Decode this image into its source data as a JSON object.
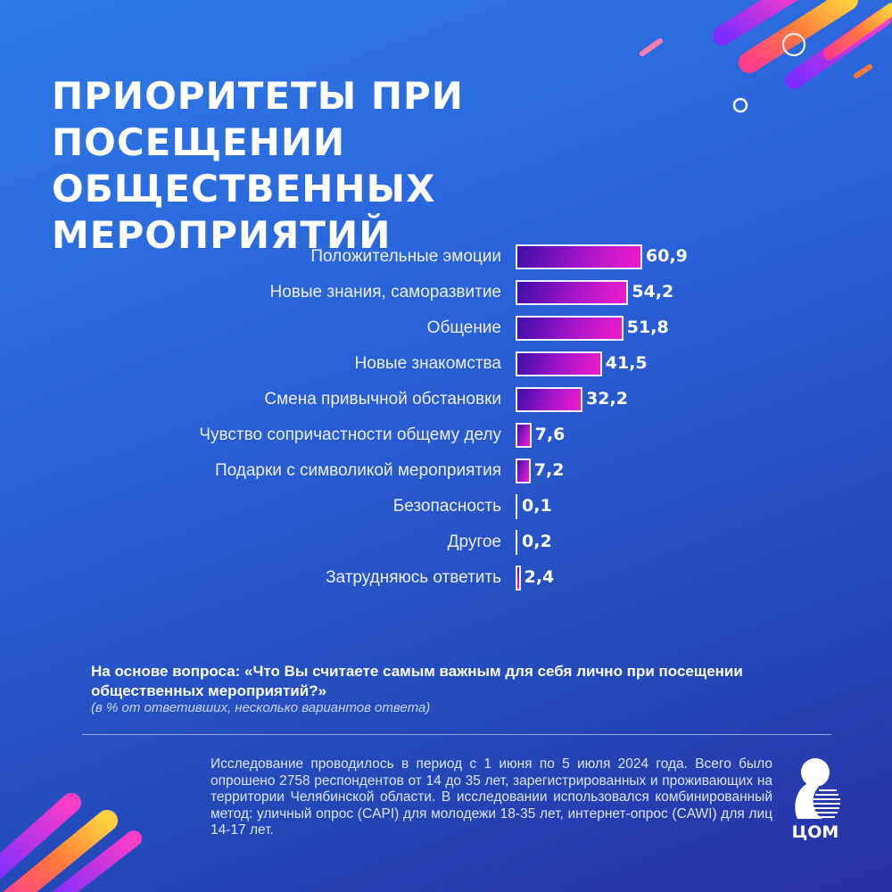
{
  "title": "ПРИОРИТЕТЫ ПРИ ПОСЕЩЕНИИ ОБЩЕСТВЕННЫХ МЕРОПРИЯТИЙ",
  "chart_data": {
    "type": "bar",
    "orientation": "horizontal",
    "categories": [
      "Положительные эмоции",
      "Новые знания, саморазвитие",
      "Общение",
      "Новые знакомства",
      "Смена привычной обстановки",
      "Чувство сопричастности общему делу",
      "Подарки с символикой мероприятия",
      "Безопасность",
      "Другое",
      "Затрудняюсь ответить"
    ],
    "values": [
      60.9,
      54.2,
      51.8,
      41.5,
      32.2,
      7.6,
      7.2,
      0.1,
      0.2,
      2.4
    ],
    "value_labels": [
      "60,9",
      "54,2",
      "51,8",
      "41,5",
      "32,2",
      "7,6",
      "7,2",
      "0,1",
      "0,2",
      "2,4"
    ],
    "grid": false,
    "bar_colors": [
      "#3a10a8",
      "#f21ccc"
    ]
  },
  "question": "На основе вопроса: «Что Вы считаете самым важным для себя лично при посещении общественных мероприятий?»",
  "note": "(в % от ответивших, несколько вариантов ответа)",
  "method": "Исследование проводилось в период с 1 июня по 5 июля 2024 года. Всего было опрошено 2758 респондентов от 14 до 35 лет, зарегистрированных и проживающих на территории Челябинской области. В исследовании использовался комбинированный метод: уличный опрос (CAPI) для молодежи 18-35 лет, интернет-опрос (CAWI) для лиц 14-17 лет.",
  "logo": "ЦОМ"
}
